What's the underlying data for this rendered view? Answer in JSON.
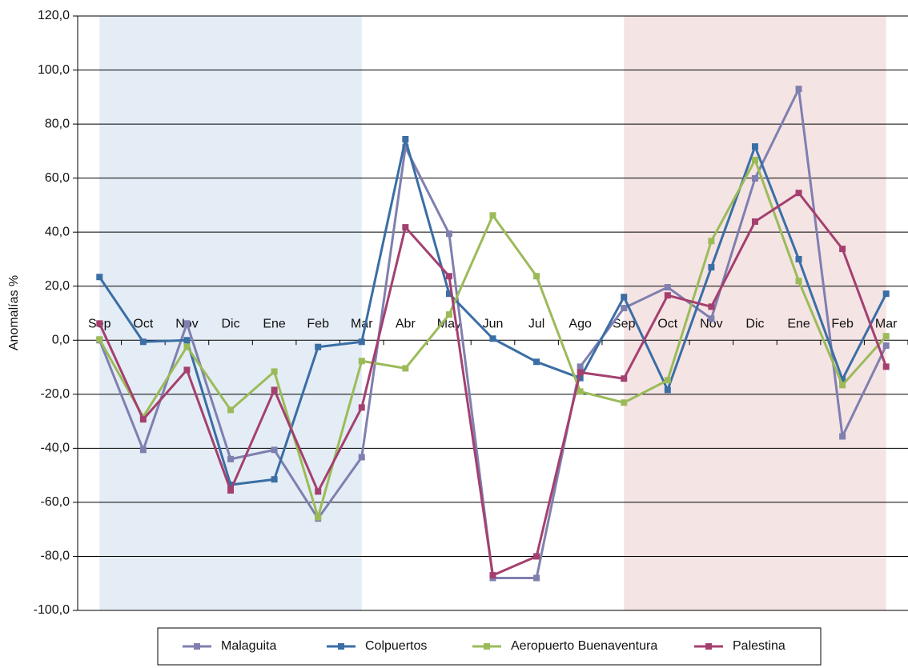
{
  "chart_data": {
    "type": "line",
    "y_label": "Anomalías %",
    "categories": [
      "Sep",
      "Oct",
      "Nov",
      "Dic",
      "Ene",
      "Feb",
      "Mar",
      "Abr",
      "May",
      "Jun",
      "Jul",
      "Ago",
      "Sep",
      "Oct",
      "Nov",
      "Dic",
      "Ene",
      "Feb",
      "Mar"
    ],
    "ylim": [
      -100,
      120
    ],
    "yticks": [
      {
        "value": -100,
        "label": "-100,0"
      },
      {
        "value": -80,
        "label": "-80,0"
      },
      {
        "value": -60,
        "label": "-60,0"
      },
      {
        "value": -40,
        "label": "-40,0"
      },
      {
        "value": -20,
        "label": "-20,0"
      },
      {
        "value": 0,
        "label": "0,0"
      },
      {
        "value": 20,
        "label": "20,0"
      },
      {
        "value": 40,
        "label": "40,0"
      },
      {
        "value": 60,
        "label": "60,0"
      },
      {
        "value": 80,
        "label": "80,0"
      },
      {
        "value": 100,
        "label": "100,0"
      },
      {
        "value": 120,
        "label": "120,0"
      }
    ],
    "grid": true,
    "legend": "bottom",
    "series": [
      {
        "name": "Malaguita",
        "color": "#7f7fb0",
        "values": [
          0,
          -40.6,
          6.2,
          -44,
          -40.6,
          -66,
          -43.3,
          71.4,
          39.4,
          -88,
          -88,
          -9.8,
          11.9,
          19.6,
          8,
          59.9,
          93,
          -35.6,
          -2
        ]
      },
      {
        "name": "Colpuertos",
        "color": "#3a6ea5",
        "values": [
          23.4,
          -0.6,
          0,
          -53.5,
          -51.5,
          -2.5,
          -0.6,
          74.4,
          17.2,
          0.6,
          -8,
          -14,
          16,
          -18.4,
          27,
          71.7,
          30,
          -14.5,
          17.2
        ]
      },
      {
        "name": "Aeropuerto Buenaventura",
        "color": "#9bbb59",
        "values": [
          0.3,
          -28.4,
          -2.4,
          -25.8,
          -11.6,
          -65.5,
          -7.7,
          -10.4,
          9.5,
          46.2,
          23.7,
          -19,
          -23.1,
          -14.8,
          36.7,
          66.7,
          21.9,
          -16.6,
          1.5
        ]
      },
      {
        "name": "Palestina",
        "color": "#a4406f",
        "values": [
          6.2,
          -29.3,
          -11,
          -55.6,
          -18.4,
          -56,
          -24.9,
          41.8,
          23.7,
          -87,
          -80,
          -11.9,
          -14.2,
          16.6,
          12.4,
          43.9,
          54.5,
          33.8,
          -9.8
        ]
      }
    ]
  }
}
